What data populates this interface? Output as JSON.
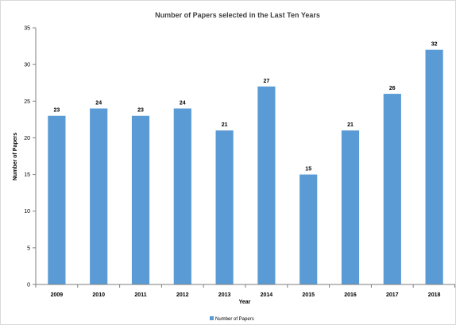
{
  "chart_data": {
    "type": "bar",
    "title": "Number of Papers selected in the Last Ten Years",
    "xlabel": "Year",
    "ylabel": "Number of Papers",
    "categories": [
      "2009",
      "2010",
      "2011",
      "2012",
      "2013",
      "2014",
      "2015",
      "2016",
      "2017",
      "2018"
    ],
    "series": [
      {
        "name": "Number of Papers",
        "values": [
          23,
          24,
          23,
          24,
          21,
          27,
          15,
          21,
          26,
          32
        ],
        "color": "#5b9bd5"
      }
    ],
    "ylim": [
      0,
      35
    ],
    "yticks": [
      0,
      5,
      10,
      15,
      20,
      25,
      30,
      35
    ],
    "grid": false,
    "legend": "bottom-center"
  }
}
